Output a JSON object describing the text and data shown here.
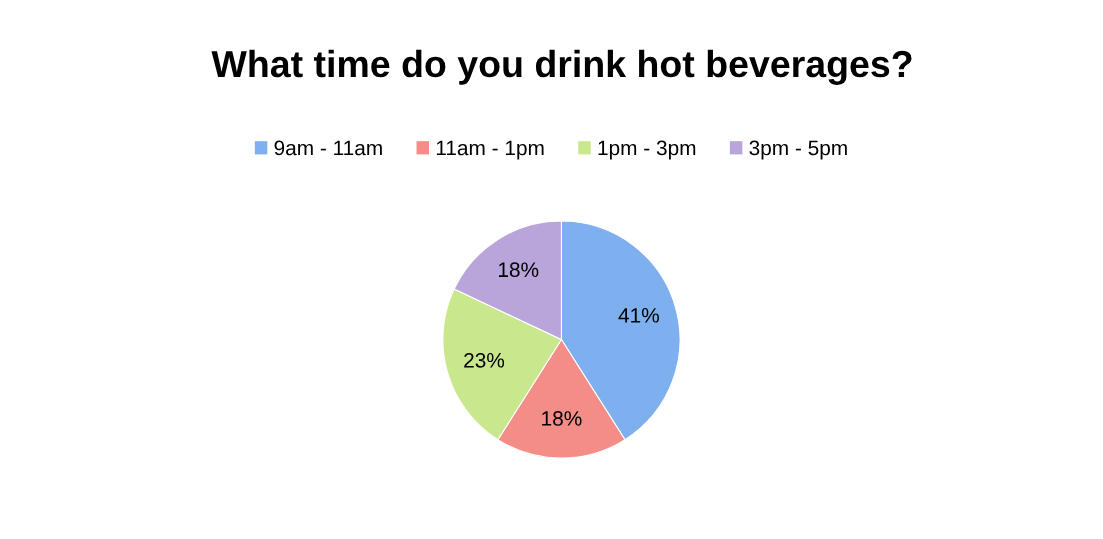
{
  "chart_data": {
    "type": "pie",
    "title": "What time do you drink hot beverages?",
    "categories": [
      "9am - 11am",
      "11am - 1pm",
      "1pm - 3pm",
      "3pm - 5pm"
    ],
    "values": [
      41,
      18,
      23,
      18
    ],
    "colors": [
      "#7eafee",
      "#f48c88",
      "#c9e78c",
      "#b9a5da"
    ],
    "value_labels": [
      "41%",
      "18%",
      "23%",
      "18%"
    ],
    "legend": "top"
  }
}
